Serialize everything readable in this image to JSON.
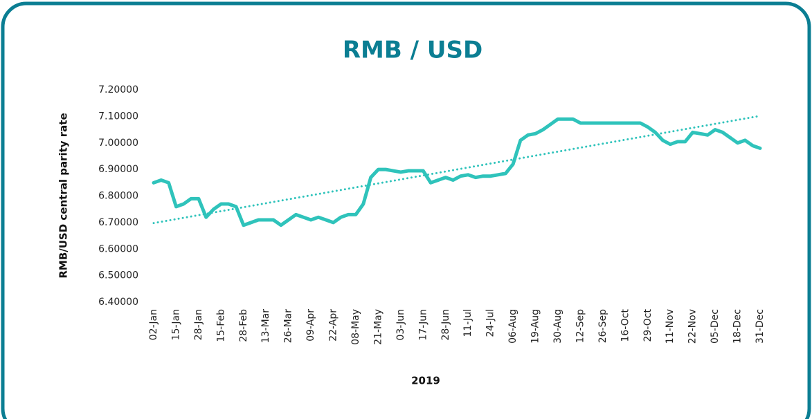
{
  "chart_data": {
    "type": "line",
    "title": "RMB / USD",
    "xlabel": "2019",
    "ylabel": "RMB/USD central parity rate",
    "categories": [
      "02-Jan",
      null,
      null,
      "15-Jan",
      null,
      null,
      "28-Jan",
      null,
      null,
      "15-Feb",
      null,
      null,
      "28-Feb",
      null,
      null,
      "13-Mar",
      null,
      null,
      "26-Mar",
      null,
      null,
      "09-Apr",
      null,
      null,
      "22-Apr",
      null,
      null,
      "08-May",
      null,
      null,
      "21-May",
      null,
      null,
      "03-Jun",
      null,
      null,
      "17-Jun",
      null,
      null,
      "28-Jun",
      null,
      null,
      "11-Jul",
      null,
      null,
      "24-Jul",
      null,
      null,
      "06-Aug",
      null,
      null,
      "19-Aug",
      null,
      null,
      "30-Aug",
      null,
      null,
      "12-Sep",
      null,
      null,
      "26-Sep",
      null,
      null,
      "16-Oct",
      null,
      null,
      "29-Oct",
      null,
      null,
      "11-Nov",
      null,
      null,
      "22-Nov",
      null,
      null,
      "05-Dec",
      null,
      null,
      "18-Dec",
      null,
      null,
      "31-Dec"
    ],
    "series": [
      {
        "color": "#2fc3bb",
        "values": [
          6.85,
          6.86,
          6.85,
          6.76,
          6.77,
          6.79,
          6.79,
          6.72,
          6.75,
          6.77,
          6.77,
          6.76,
          6.69,
          6.7,
          6.71,
          6.71,
          6.71,
          6.69,
          6.71,
          6.73,
          6.72,
          6.71,
          6.72,
          6.71,
          6.7,
          6.72,
          6.73,
          6.73,
          6.77,
          6.87,
          6.9,
          6.9,
          6.895,
          6.89,
          6.895,
          6.895,
          6.895,
          6.85,
          6.86,
          6.87,
          6.86,
          6.875,
          6.88,
          6.87,
          6.875,
          6.875,
          6.88,
          6.885,
          6.92,
          7.01,
          7.03,
          7.035,
          7.05,
          7.07,
          7.09,
          7.09,
          7.09,
          7.075,
          7.075,
          7.075,
          7.075,
          7.075,
          7.075,
          7.075,
          7.075,
          7.075,
          7.06,
          7.04,
          7.01,
          6.995,
          7.005,
          7.005,
          7.04,
          7.035,
          7.03,
          7.05,
          7.04,
          7.02,
          7.0,
          7.01,
          6.99,
          6.98
        ]
      }
    ],
    "trendline": {
      "color": "#2fc3bb",
      "style": "dotted",
      "values": [
        6.698,
        7.102
      ]
    },
    "ylim": [
      6.4,
      7.2
    ],
    "yticks": [
      {
        "value": 6.4,
        "label": "6.40000"
      },
      {
        "value": 6.5,
        "label": "6.50000"
      },
      {
        "value": 6.6,
        "label": "6.60000"
      },
      {
        "value": 6.7,
        "label": "6.70000"
      },
      {
        "value": 6.8,
        "label": "6.80000"
      },
      {
        "value": 6.9,
        "label": "6.90000"
      },
      {
        "value": 7.0,
        "label": "7.00000"
      },
      {
        "value": 7.1,
        "label": "7.10000"
      },
      {
        "value": 7.2,
        "label": "7.20000"
      }
    ],
    "grid": false
  }
}
